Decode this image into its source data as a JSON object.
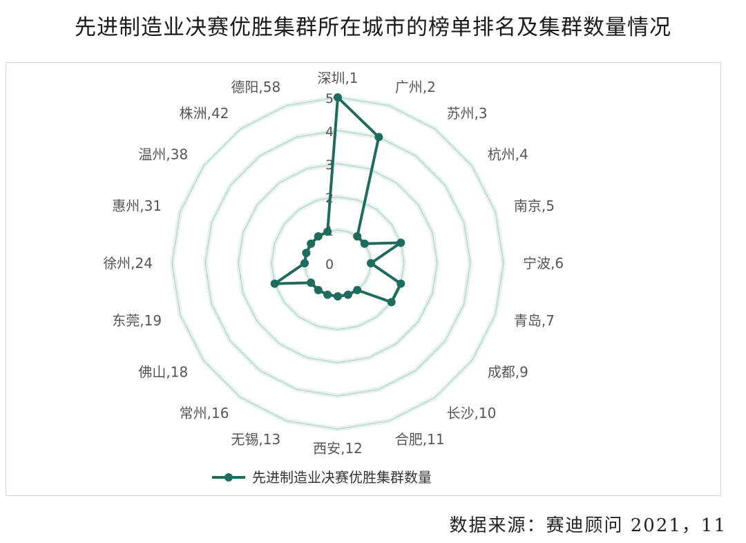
{
  "title": "先进制造业决赛优胜集群所在城市的榜单排名及集群数量情况",
  "source": "数据来源：赛迪顾问 2021，11",
  "colors": {
    "series": "#1f6b5c",
    "grid": "#b9d8d0",
    "axis_text": "#555555"
  },
  "chart_data": {
    "type": "radar",
    "title": "先进制造业决赛优胜集群所在城市的榜单排名及集群数量情况",
    "categories": [
      "深圳,1",
      "广州,2",
      "苏州,3",
      "杭州,4",
      "南京,5",
      "宁波,6",
      "青岛,7",
      "成都,9",
      "长沙,10",
      "合肥,11",
      "西安,12",
      "无锡,13",
      "常州,16",
      "佛山,18",
      "东莞,19",
      "徐州,24",
      "惠州,31",
      "温州,38",
      "株洲,42",
      "德阳,58"
    ],
    "series": [
      {
        "name": "先进制造业决赛优胜集群数量",
        "values": [
          5,
          4,
          1,
          1,
          2,
          1,
          2,
          2,
          1,
          1,
          1,
          1,
          1,
          1,
          2,
          1,
          1,
          1,
          1,
          1
        ]
      }
    ],
    "radial_ticks": [
      "0",
      "1",
      "2",
      "3",
      "4",
      "5"
    ],
    "rlim": [
      0,
      5
    ],
    "grid": true,
    "legend_position": "bottom"
  }
}
